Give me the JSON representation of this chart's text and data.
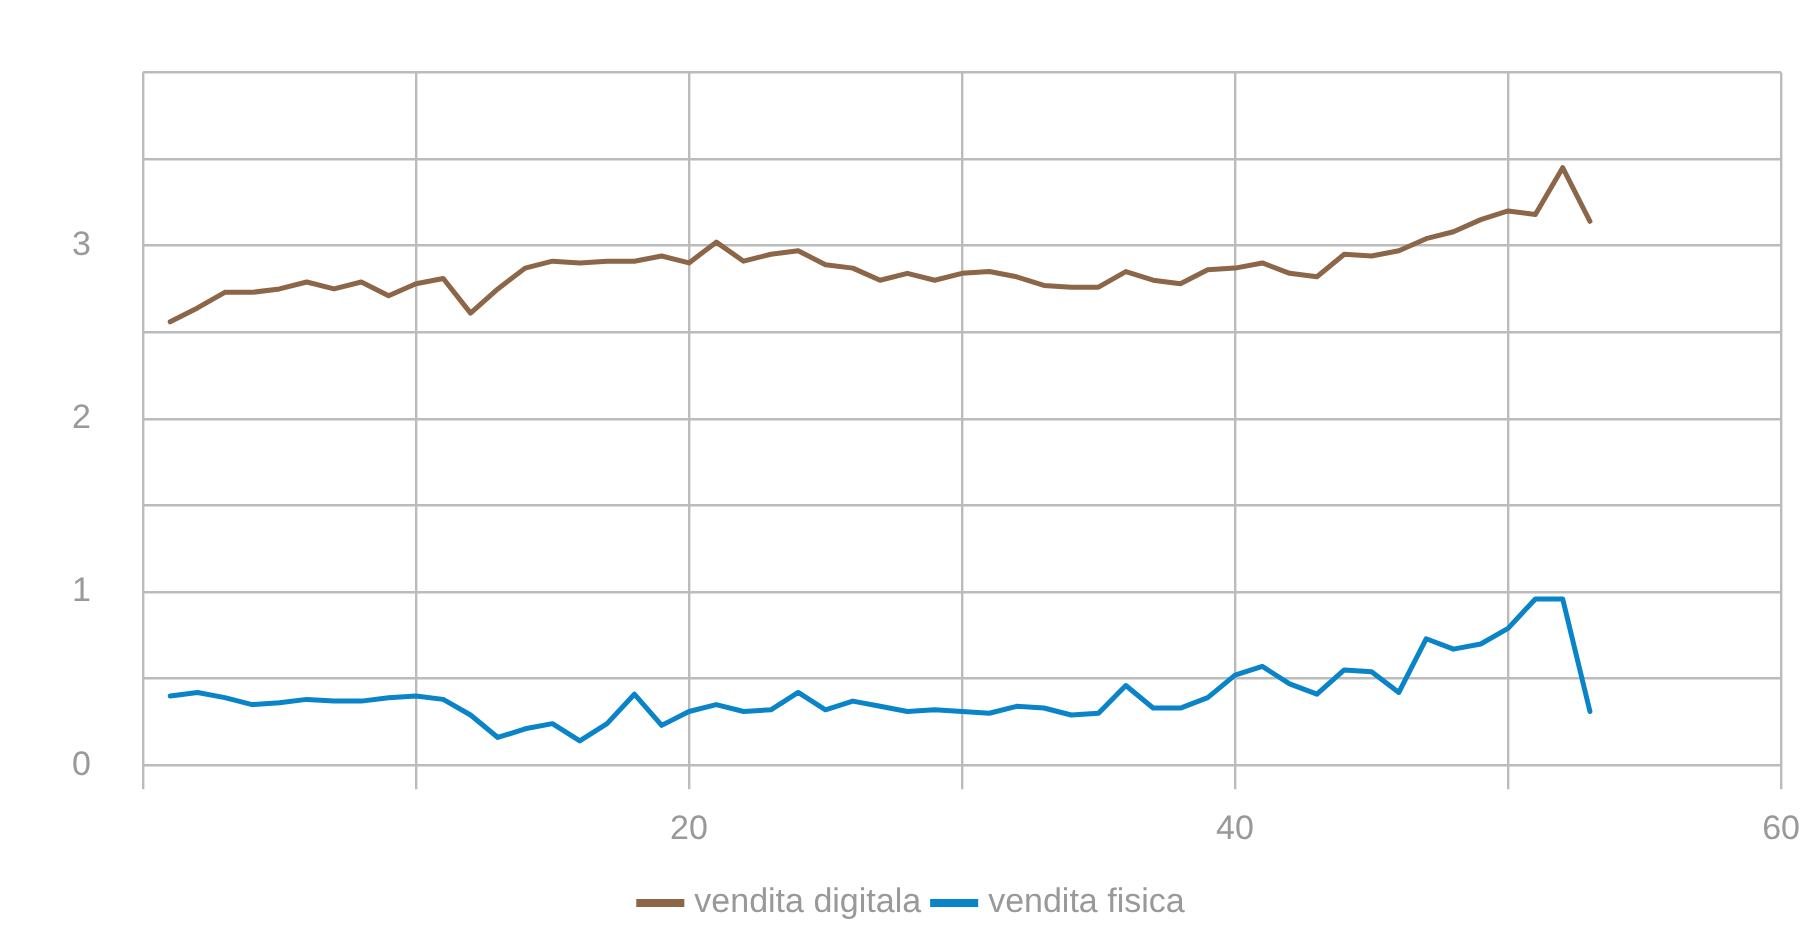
{
  "chart_data": {
    "type": "line",
    "x": [
      1,
      2,
      3,
      4,
      5,
      6,
      7,
      8,
      9,
      10,
      11,
      12,
      13,
      14,
      15,
      16,
      17,
      18,
      19,
      20,
      21,
      22,
      23,
      24,
      25,
      26,
      27,
      28,
      29,
      30,
      31,
      32,
      33,
      34,
      35,
      36,
      37,
      38,
      39,
      40,
      41,
      42,
      43,
      44,
      45,
      46,
      47,
      48,
      49,
      50,
      51,
      52,
      53
    ],
    "series": [
      {
        "name": "vendita digitala",
        "color": "#8c6649",
        "values": [
          2.56,
          2.64,
          2.73,
          2.73,
          2.75,
          2.79,
          2.75,
          2.79,
          2.71,
          2.78,
          2.81,
          2.61,
          2.75,
          2.87,
          2.91,
          2.9,
          2.91,
          2.91,
          2.94,
          2.9,
          3.02,
          2.91,
          2.95,
          2.97,
          2.89,
          2.87,
          2.8,
          2.84,
          2.8,
          2.84,
          2.85,
          2.82,
          2.77,
          2.76,
          2.76,
          2.85,
          2.8,
          2.78,
          2.86,
          2.87,
          2.9,
          2.84,
          2.82,
          2.95,
          2.94,
          2.97,
          3.04,
          3.08,
          3.15,
          3.2,
          3.18,
          3.45,
          3.14
        ]
      },
      {
        "name": "vendita fisica",
        "color": "#0a84c8",
        "values": [
          0.4,
          0.42,
          0.39,
          0.35,
          0.36,
          0.38,
          0.37,
          0.37,
          0.39,
          0.4,
          0.38,
          0.29,
          0.16,
          0.21,
          0.24,
          0.14,
          0.24,
          0.41,
          0.23,
          0.31,
          0.35,
          0.31,
          0.32,
          0.42,
          0.32,
          0.37,
          0.34,
          0.31,
          0.32,
          0.31,
          0.3,
          0.34,
          0.33,
          0.29,
          0.3,
          0.46,
          0.33,
          0.33,
          0.39,
          0.52,
          0.57,
          0.47,
          0.41,
          0.55,
          0.54,
          0.42,
          0.73,
          0.67,
          0.7,
          0.79,
          0.96,
          0.96,
          0.31
        ]
      }
    ],
    "xlim": [
      0,
      60
    ],
    "xticks": [
      {
        "value": 0,
        "label": null
      },
      {
        "value": 10,
        "label": null
      },
      20,
      {
        "value": 30,
        "label": null
      },
      40,
      {
        "value": 50,
        "label": null
      },
      60
    ],
    "ylim": [
      0,
      4
    ],
    "yticks": [
      0,
      {
        "value": 0.5,
        "label": null
      },
      1,
      {
        "value": 1.5,
        "label": null
      },
      2,
      {
        "value": 2.5,
        "label": null
      },
      3,
      {
        "value": 3.5,
        "label": null
      },
      {
        "value": 4,
        "label": null
      }
    ],
    "grid": true,
    "legend": "bottom",
    "marker": "none",
    "line_style": "solid"
  }
}
